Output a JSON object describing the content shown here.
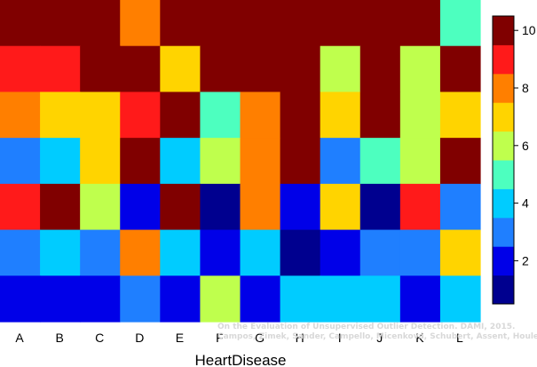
{
  "chart_data": {
    "type": "heatmap",
    "xlabel": "HeartDisease",
    "ylabel": "",
    "categories": [
      "A",
      "B",
      "C",
      "D",
      "E",
      "F",
      "G",
      "H",
      "I",
      "J",
      "K",
      "L"
    ],
    "rows_top_to_bottom": [
      [
        10,
        10,
        10,
        8,
        10,
        10,
        10,
        10,
        10,
        10,
        10,
        5
      ],
      [
        9,
        9,
        10,
        10,
        7,
        10,
        10,
        10,
        6,
        10,
        6,
        10
      ],
      [
        8,
        7,
        7,
        9,
        10,
        5,
        8,
        10,
        7,
        10,
        6,
        7
      ],
      [
        3,
        4,
        7,
        10,
        4,
        6,
        8,
        10,
        3,
        5,
        6,
        10
      ],
      [
        9,
        10,
        6,
        2,
        10,
        1,
        8,
        2,
        7,
        1,
        9,
        3
      ],
      [
        3,
        4,
        3,
        8,
        4,
        2,
        4,
        1,
        2,
        3,
        3,
        7
      ],
      [
        2,
        2,
        2,
        3,
        2,
        6,
        2,
        4,
        4,
        4,
        2,
        4
      ]
    ],
    "colorbar": {
      "min": 1,
      "max": 10,
      "ticks": [
        2,
        4,
        6,
        8,
        10
      ],
      "colors": [
        "#00008f",
        "#0000e8",
        "#1f7fff",
        "#00ccff",
        "#4dffbf",
        "#bfff4d",
        "#ffd400",
        "#ff7f00",
        "#ff1a1a",
        "#800000"
      ]
    },
    "grid": false
  },
  "watermark": {
    "line1": "On the Evaluation of Unsupervised Outlier Detection. DAMI, 2015.",
    "line2": "Campos, Zimek, Sander, Campello, Micenková, Schubert, Assent, Houle"
  }
}
